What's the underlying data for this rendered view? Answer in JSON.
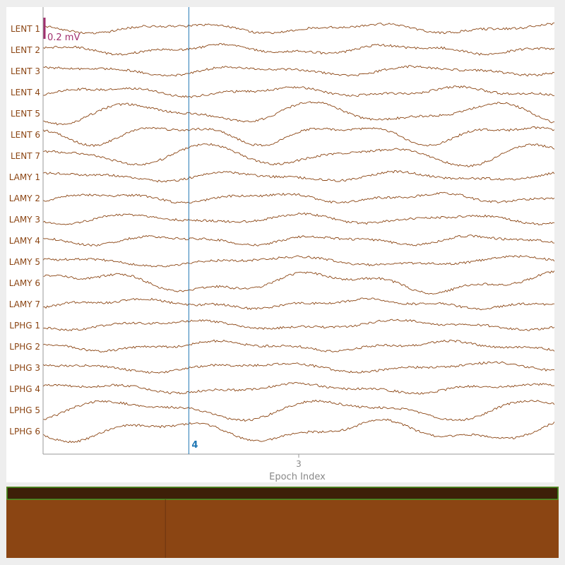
{
  "chart_data": {
    "type": "line",
    "channels": [
      "LENT 1",
      "LENT 2",
      "LENT 3",
      "LENT 4",
      "LENT 5",
      "LENT 6",
      "LENT 7",
      "LAMY 1",
      "LAMY 2",
      "LAMY 3",
      "LAMY 4",
      "LAMY 5",
      "LAMY 6",
      "LAMY 7",
      "LPHG 1",
      "LPHG 2",
      "LPHG 3",
      "LPHG 4",
      "LPHG 5",
      "LPHG 6"
    ],
    "xlabel": "Epoch Index",
    "x_ticks": [
      {
        "value": 3,
        "label": "3"
      }
    ],
    "xlim": [
      2.0,
      4.0
    ],
    "scale_bar": {
      "label": "0.2 mV",
      "value_mv": 0.2
    },
    "event_marker": {
      "label": "4",
      "x": 2.57
    },
    "trace_color": "#8b4513",
    "event_color": "#1f77b4",
    "scale_color": "#a0306e"
  },
  "browser": {
    "fill_color": "#8b4513",
    "header_color": "#3d1f08",
    "border_color": "#33cc33",
    "divider_fraction": 0.288
  }
}
